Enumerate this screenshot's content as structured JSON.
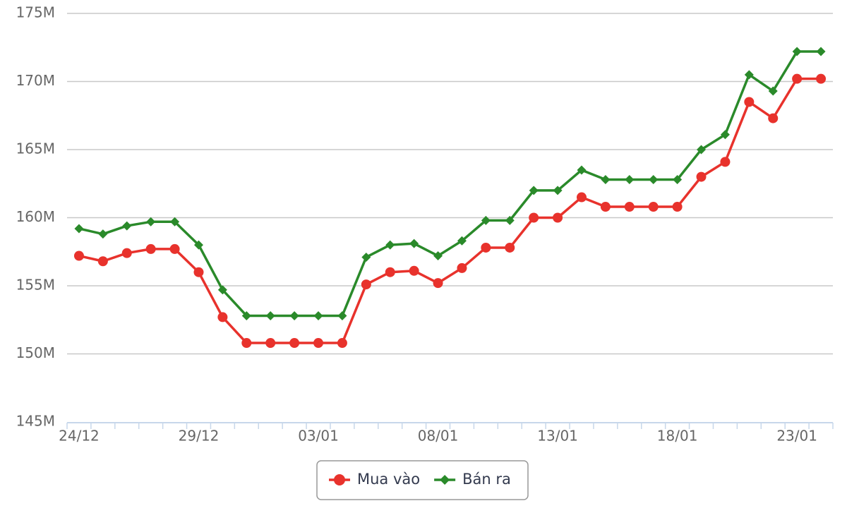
{
  "chart_data": {
    "type": "line",
    "categories": [
      "24/12",
      null,
      null,
      null,
      null,
      "29/12",
      null,
      null,
      null,
      null,
      "03/01",
      null,
      null,
      null,
      null,
      "08/01",
      null,
      null,
      null,
      null,
      "13/01",
      null,
      null,
      null,
      null,
      "18/01",
      null,
      null,
      null,
      null,
      "23/01",
      null
    ],
    "series": [
      {
        "name": "Mua vào",
        "color": "#e8322c",
        "marker": "circle",
        "values": [
          157200000,
          156800000,
          157400000,
          157700000,
          157700000,
          156000000,
          152700000,
          150800000,
          150800000,
          150800000,
          150800000,
          150800000,
          155100000,
          156000000,
          156100000,
          155200000,
          156300000,
          157800000,
          157800000,
          160000000,
          160000000,
          161500000,
          160800000,
          160800000,
          160800000,
          160800000,
          163000000,
          164100000,
          168500000,
          167300000,
          170200000,
          170200000
        ]
      },
      {
        "name": "Bán ra",
        "color": "#2a8a2a",
        "marker": "diamond",
        "values": [
          159200000,
          158800000,
          159400000,
          159700000,
          159700000,
          158000000,
          154700000,
          152800000,
          152800000,
          152800000,
          152800000,
          152800000,
          157100000,
          158000000,
          158100000,
          157200000,
          158300000,
          159800000,
          159800000,
          162000000,
          162000000,
          163500000,
          162800000,
          162800000,
          162800000,
          162800000,
          165000000,
          166100000,
          170500000,
          169300000,
          172200000,
          172200000
        ]
      }
    ],
    "ylim": [
      145000000,
      175000000
    ],
    "yticks": [
      {
        "value": 145000000,
        "label": "145M"
      },
      {
        "value": 150000000,
        "label": "150M"
      },
      {
        "value": 155000000,
        "label": "155M"
      },
      {
        "value": 160000000,
        "label": "160M"
      },
      {
        "value": 165000000,
        "label": "165M"
      },
      {
        "value": 170000000,
        "label": "170M"
      },
      {
        "value": 175000000,
        "label": "175M"
      }
    ],
    "grid": true,
    "legend": "bottom"
  }
}
